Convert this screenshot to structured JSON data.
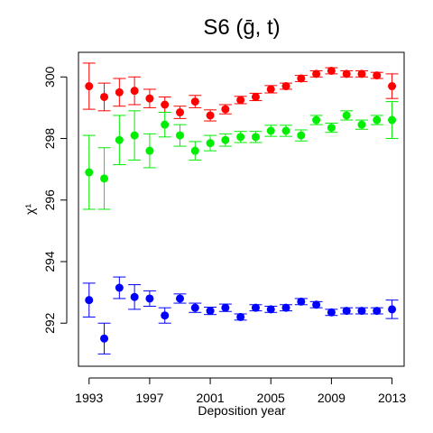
{
  "chart_data": {
    "type": "scatter",
    "title": "S6  (ḡ, t)",
    "xlabel": "Deposition year",
    "ylabel": "χ¹",
    "xlim": [
      1992.3,
      2013.8
    ],
    "ylim": [
      290.6,
      300.8
    ],
    "xticks": [
      1993,
      1997,
      2001,
      2005,
      2009,
      2013
    ],
    "yticks": [
      292,
      294,
      296,
      298,
      300
    ],
    "grid": false,
    "legend": "none",
    "error_bars": true,
    "series": [
      {
        "color": "#ff0000",
        "x": [
          1993,
          1994,
          1995,
          1996,
          1997,
          1998,
          1999,
          2000,
          2001,
          2002,
          2003,
          2004,
          2005,
          2006,
          2007,
          2008,
          2009,
          2010,
          2011,
          2012,
          2013
        ],
        "y": [
          299.7,
          299.35,
          299.5,
          299.55,
          299.3,
          299.1,
          298.85,
          299.2,
          298.75,
          298.95,
          299.25,
          299.35,
          299.6,
          299.7,
          299.95,
          300.1,
          300.2,
          300.1,
          300.1,
          300.05,
          299.7
        ],
        "err": [
          0.75,
          0.45,
          0.45,
          0.45,
          0.3,
          0.25,
          0.2,
          0.2,
          0.18,
          0.15,
          0.12,
          0.12,
          0.12,
          0.1,
          0.1,
          0.1,
          0.1,
          0.1,
          0.1,
          0.1,
          0.4
        ]
      },
      {
        "color": "#00ee00",
        "x": [
          1993,
          1994,
          1995,
          1996,
          1997,
          1998,
          1999,
          2000,
          2001,
          2002,
          2003,
          2004,
          2005,
          2006,
          2007,
          2008,
          2009,
          2010,
          2011,
          2012,
          2013
        ],
        "y": [
          296.9,
          296.7,
          297.95,
          298.1,
          297.6,
          298.45,
          298.1,
          297.6,
          297.85,
          297.95,
          298.05,
          298.05,
          298.25,
          298.25,
          298.1,
          298.6,
          298.35,
          298.75,
          298.45,
          298.6,
          298.6
        ],
        "err": [
          1.2,
          1.0,
          0.8,
          0.8,
          0.55,
          0.4,
          0.35,
          0.3,
          0.25,
          0.2,
          0.18,
          0.18,
          0.18,
          0.18,
          0.18,
          0.15,
          0.15,
          0.15,
          0.15,
          0.15,
          0.6
        ]
      },
      {
        "color": "#0000ff",
        "x": [
          1993,
          1994,
          1995,
          1996,
          1997,
          1998,
          1999,
          2000,
          2001,
          2002,
          2003,
          2004,
          2005,
          2006,
          2007,
          2008,
          2009,
          2010,
          2011,
          2012,
          2013
        ],
        "y": [
          292.75,
          291.5,
          293.15,
          292.85,
          292.8,
          292.25,
          292.8,
          292.5,
          292.4,
          292.5,
          292.2,
          292.5,
          292.45,
          292.5,
          292.7,
          292.6,
          292.35,
          292.4,
          292.4,
          292.4,
          292.45
        ],
        "err": [
          0.55,
          0.5,
          0.35,
          0.4,
          0.25,
          0.25,
          0.15,
          0.15,
          0.12,
          0.12,
          0.1,
          0.1,
          0.1,
          0.1,
          0.1,
          0.1,
          0.1,
          0.1,
          0.1,
          0.1,
          0.3
        ]
      }
    ]
  }
}
